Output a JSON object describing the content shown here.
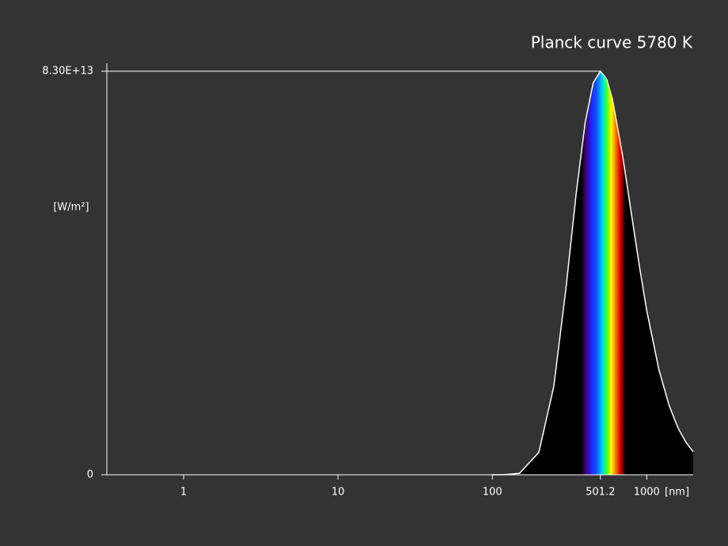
{
  "chart_data": {
    "type": "area",
    "title": "Planck curve 5780 K",
    "y_label": "[W/m²]",
    "x_label": "[nm]",
    "log_x": true,
    "xlim": [
      0.318,
      2000
    ],
    "ylim": [
      0,
      83000000000000.0
    ],
    "xticks": [
      1,
      10,
      100,
      501.2,
      1000
    ],
    "yticks": [
      0,
      {
        "value": 83000000000000.0,
        "label": "8.30E+13"
      }
    ],
    "series": [
      {
        "color": "#ffffff",
        "fill": "#000000",
        "x": [
          100,
          120,
          150,
          200,
          250,
          300,
          350,
          400,
          450,
          501.2,
          550,
          600,
          700,
          800,
          900,
          1000,
          1200,
          1400,
          1600,
          1800,
          2000
        ],
        "values": [
          580000000.0,
          14800000000.0,
          305000000000.0,
          4590000000000.0,
          18160000000000.0,
          38400000000000.0,
          58100000000000.0,
          72600000000000.0,
          80600000000000.0,
          83000000000000.0,
          81400000000000.0,
          77200000000000.0,
          65400000000000.0,
          53200000000000.0,
          42600000000000.0,
          33800000000000.0,
          21600000000000.0,
          14150000000000.0,
          9550000000000.0,
          6630000000000.0,
          4730000000000.0
        ]
      }
    ]
  }
}
